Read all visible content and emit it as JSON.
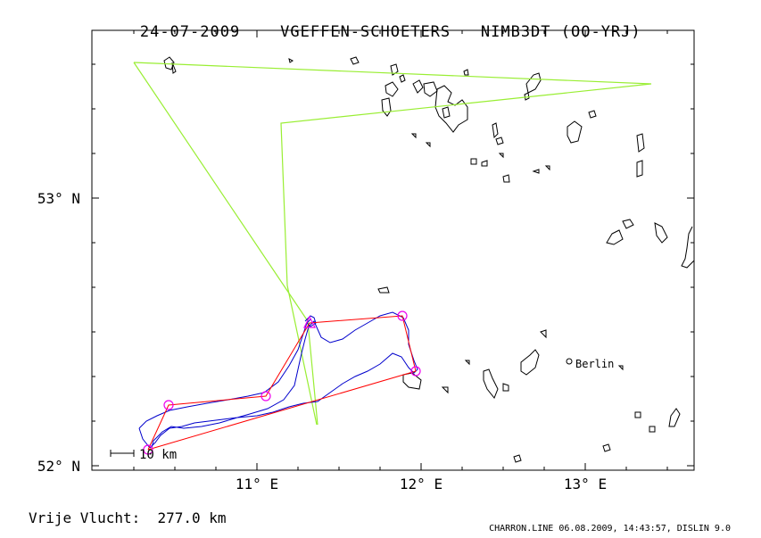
{
  "header": {
    "date": "24-07-2009",
    "pilots": "VGEFFEN-SCHOETERS",
    "glider": "NIMB3DT (OO-YRJ)"
  },
  "axes": {
    "lat_labels": [
      "53° N",
      "52° N"
    ],
    "lon_labels": [
      "11° E",
      "12° E",
      "13° E"
    ]
  },
  "scale_bar": {
    "label": "10 km"
  },
  "places": [
    {
      "name": "Berlin"
    }
  ],
  "footer": {
    "distance_label": "Vrije Vlucht:",
    "distance_value": "277.0 km",
    "credit": "CHARRON.LINE 06.08.2009, 14:43:57, DISLIN 9.0"
  },
  "colors": {
    "task_line": "#ff0000",
    "flight_track": "#0000cc",
    "airspace": "#99ee33",
    "turnpoints": "#ee00ee",
    "lakes": "#000000"
  }
}
